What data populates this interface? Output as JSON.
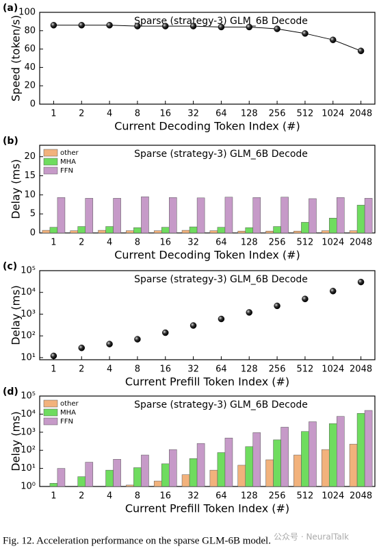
{
  "chart_data": [
    {
      "type": "line",
      "label": "(a)",
      "title": "Sparse (strategy-3) GLM_6B  Decode",
      "xlabel": "Current Decoding Token Index (#)",
      "ylabel": "Speed (token/s)",
      "categories": [
        "1",
        "2",
        "4",
        "8",
        "16",
        "32",
        "64",
        "128",
        "256",
        "512",
        "1024",
        "2048"
      ],
      "values": [
        86,
        86,
        86,
        85,
        85,
        85,
        84,
        84,
        82,
        77,
        70,
        58
      ],
      "color": "#000000",
      "ylim": [
        0,
        100
      ],
      "yticks": [
        0,
        20,
        40,
        60,
        80,
        100
      ],
      "log": false
    },
    {
      "type": "bar",
      "label": "(b)",
      "title": "Sparse (strategy-3) GLM_6B  Decode",
      "xlabel": "Current Decoding Token Index (#)",
      "ylabel": "Delay (ms)",
      "categories": [
        "1",
        "2",
        "4",
        "8",
        "16",
        "32",
        "64",
        "128",
        "256",
        "512",
        "1024",
        "2048"
      ],
      "series": [
        {
          "name": "other",
          "color": "#f2b27c",
          "values": [
            0.7,
            0.6,
            0.7,
            0.6,
            0.6,
            0.7,
            0.6,
            0.5,
            0.5,
            0.5,
            0.6,
            0.6
          ]
        },
        {
          "name": "MHA",
          "color": "#6fdc5f",
          "values": [
            1.5,
            1.7,
            1.7,
            1.4,
            1.5,
            1.6,
            1.5,
            1.4,
            1.7,
            2.8,
            3.9,
            7.3
          ]
        },
        {
          "name": "FFN",
          "color": "#c69ac8",
          "values": [
            9.3,
            9.1,
            9.1,
            9.5,
            9.3,
            9.2,
            9.4,
            9.3,
            9.4,
            9.0,
            9.3,
            9.1
          ]
        }
      ],
      "ylim": [
        0,
        23
      ],
      "yticks": [
        0,
        5,
        10,
        15,
        20
      ],
      "log": false,
      "legend": "upper left"
    },
    {
      "type": "scatter",
      "label": "(c)",
      "title": "Sparse (strategy-3) GLM_6B  Decode",
      "xlabel": "Current Prefill Token Index (#)",
      "ylabel": "Delay (ms)",
      "categories": [
        "1",
        "2",
        "4",
        "8",
        "16",
        "32",
        "64",
        "128",
        "256",
        "512",
        "1024",
        "2048"
      ],
      "values": [
        12,
        28,
        42,
        70,
        140,
        300,
        600,
        1200,
        2400,
        5000,
        11500,
        30000
      ],
      "color": "#000000",
      "ylim": [
        8,
        100000
      ],
      "yticks": [
        {
          "value": 10,
          "label": "10¹"
        },
        {
          "value": 100,
          "label": "10²"
        },
        {
          "value": 1000,
          "label": "10³"
        },
        {
          "value": 10000,
          "label": "10⁴"
        },
        {
          "value": 100000,
          "label": "10⁵"
        }
      ],
      "log": true
    },
    {
      "type": "bar",
      "label": "(d)",
      "title": "Sparse (strategy-3) GLM_6B  Decode",
      "xlabel": "Current Prefill Token Index (#)",
      "ylabel": "Delay (ms)",
      "categories": [
        "1",
        "2",
        "4",
        "8",
        "16",
        "32",
        "64",
        "128",
        "256",
        "512",
        "1024",
        "2048"
      ],
      "series": [
        {
          "name": "other",
          "color": "#f2b27c",
          "values": [
            1,
            1,
            1,
            1.2,
            2,
            4.5,
            8,
            15,
            30,
            55,
            110,
            220
          ]
        },
        {
          "name": "MHA",
          "color": "#6fdc5f",
          "values": [
            1.5,
            3.5,
            8,
            11,
            18,
            35,
            75,
            160,
            380,
            1100,
            3000,
            11000
          ]
        },
        {
          "name": "FFN",
          "color": "#c69ac8",
          "values": [
            10,
            22,
            32,
            55,
            110,
            240,
            480,
            950,
            1900,
            3800,
            7500,
            16000
          ]
        }
      ],
      "ylim": [
        1,
        100000
      ],
      "yticks": [
        {
          "value": 1,
          "label": "10⁰"
        },
        {
          "value": 10,
          "label": "10¹"
        },
        {
          "value": 100,
          "label": "10²"
        },
        {
          "value": 1000,
          "label": "10³"
        },
        {
          "value": 10000,
          "label": "10⁴"
        },
        {
          "value": 100000,
          "label": "10⁵"
        }
      ],
      "log": true,
      "legend": "upper left"
    }
  ],
  "caption": "Fig. 12.   Acceleration performance on the sparse GLM-6B model.",
  "watermark": "公众号 · NeuralTalk"
}
